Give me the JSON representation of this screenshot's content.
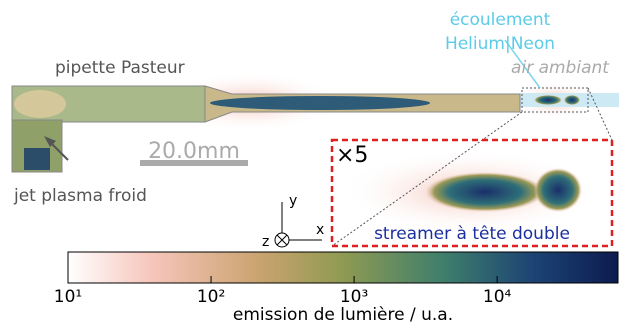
{
  "labels": {
    "pipette": "pipette Pasteur",
    "flow": "écoulement",
    "flow_gas": "Helium|Neon",
    "air": "air ambiant",
    "jet": "jet plasma froid",
    "scale": "20.0mm",
    "zoom": "×5",
    "streamer": "streamer à tête double",
    "axis_y": "y",
    "axis_x": "x",
    "axis_z": "z"
  },
  "colorbar": {
    "label": "emission de lumière / u.a.",
    "scale": "log",
    "lim": [
      10,
      70000
    ],
    "ticks": [
      {
        "value": 10,
        "label": "10¹"
      },
      {
        "value": 100,
        "label": "10²"
      },
      {
        "value": 1000,
        "label": "10³"
      },
      {
        "value": 10000,
        "label": "10⁴"
      }
    ]
  }
}
